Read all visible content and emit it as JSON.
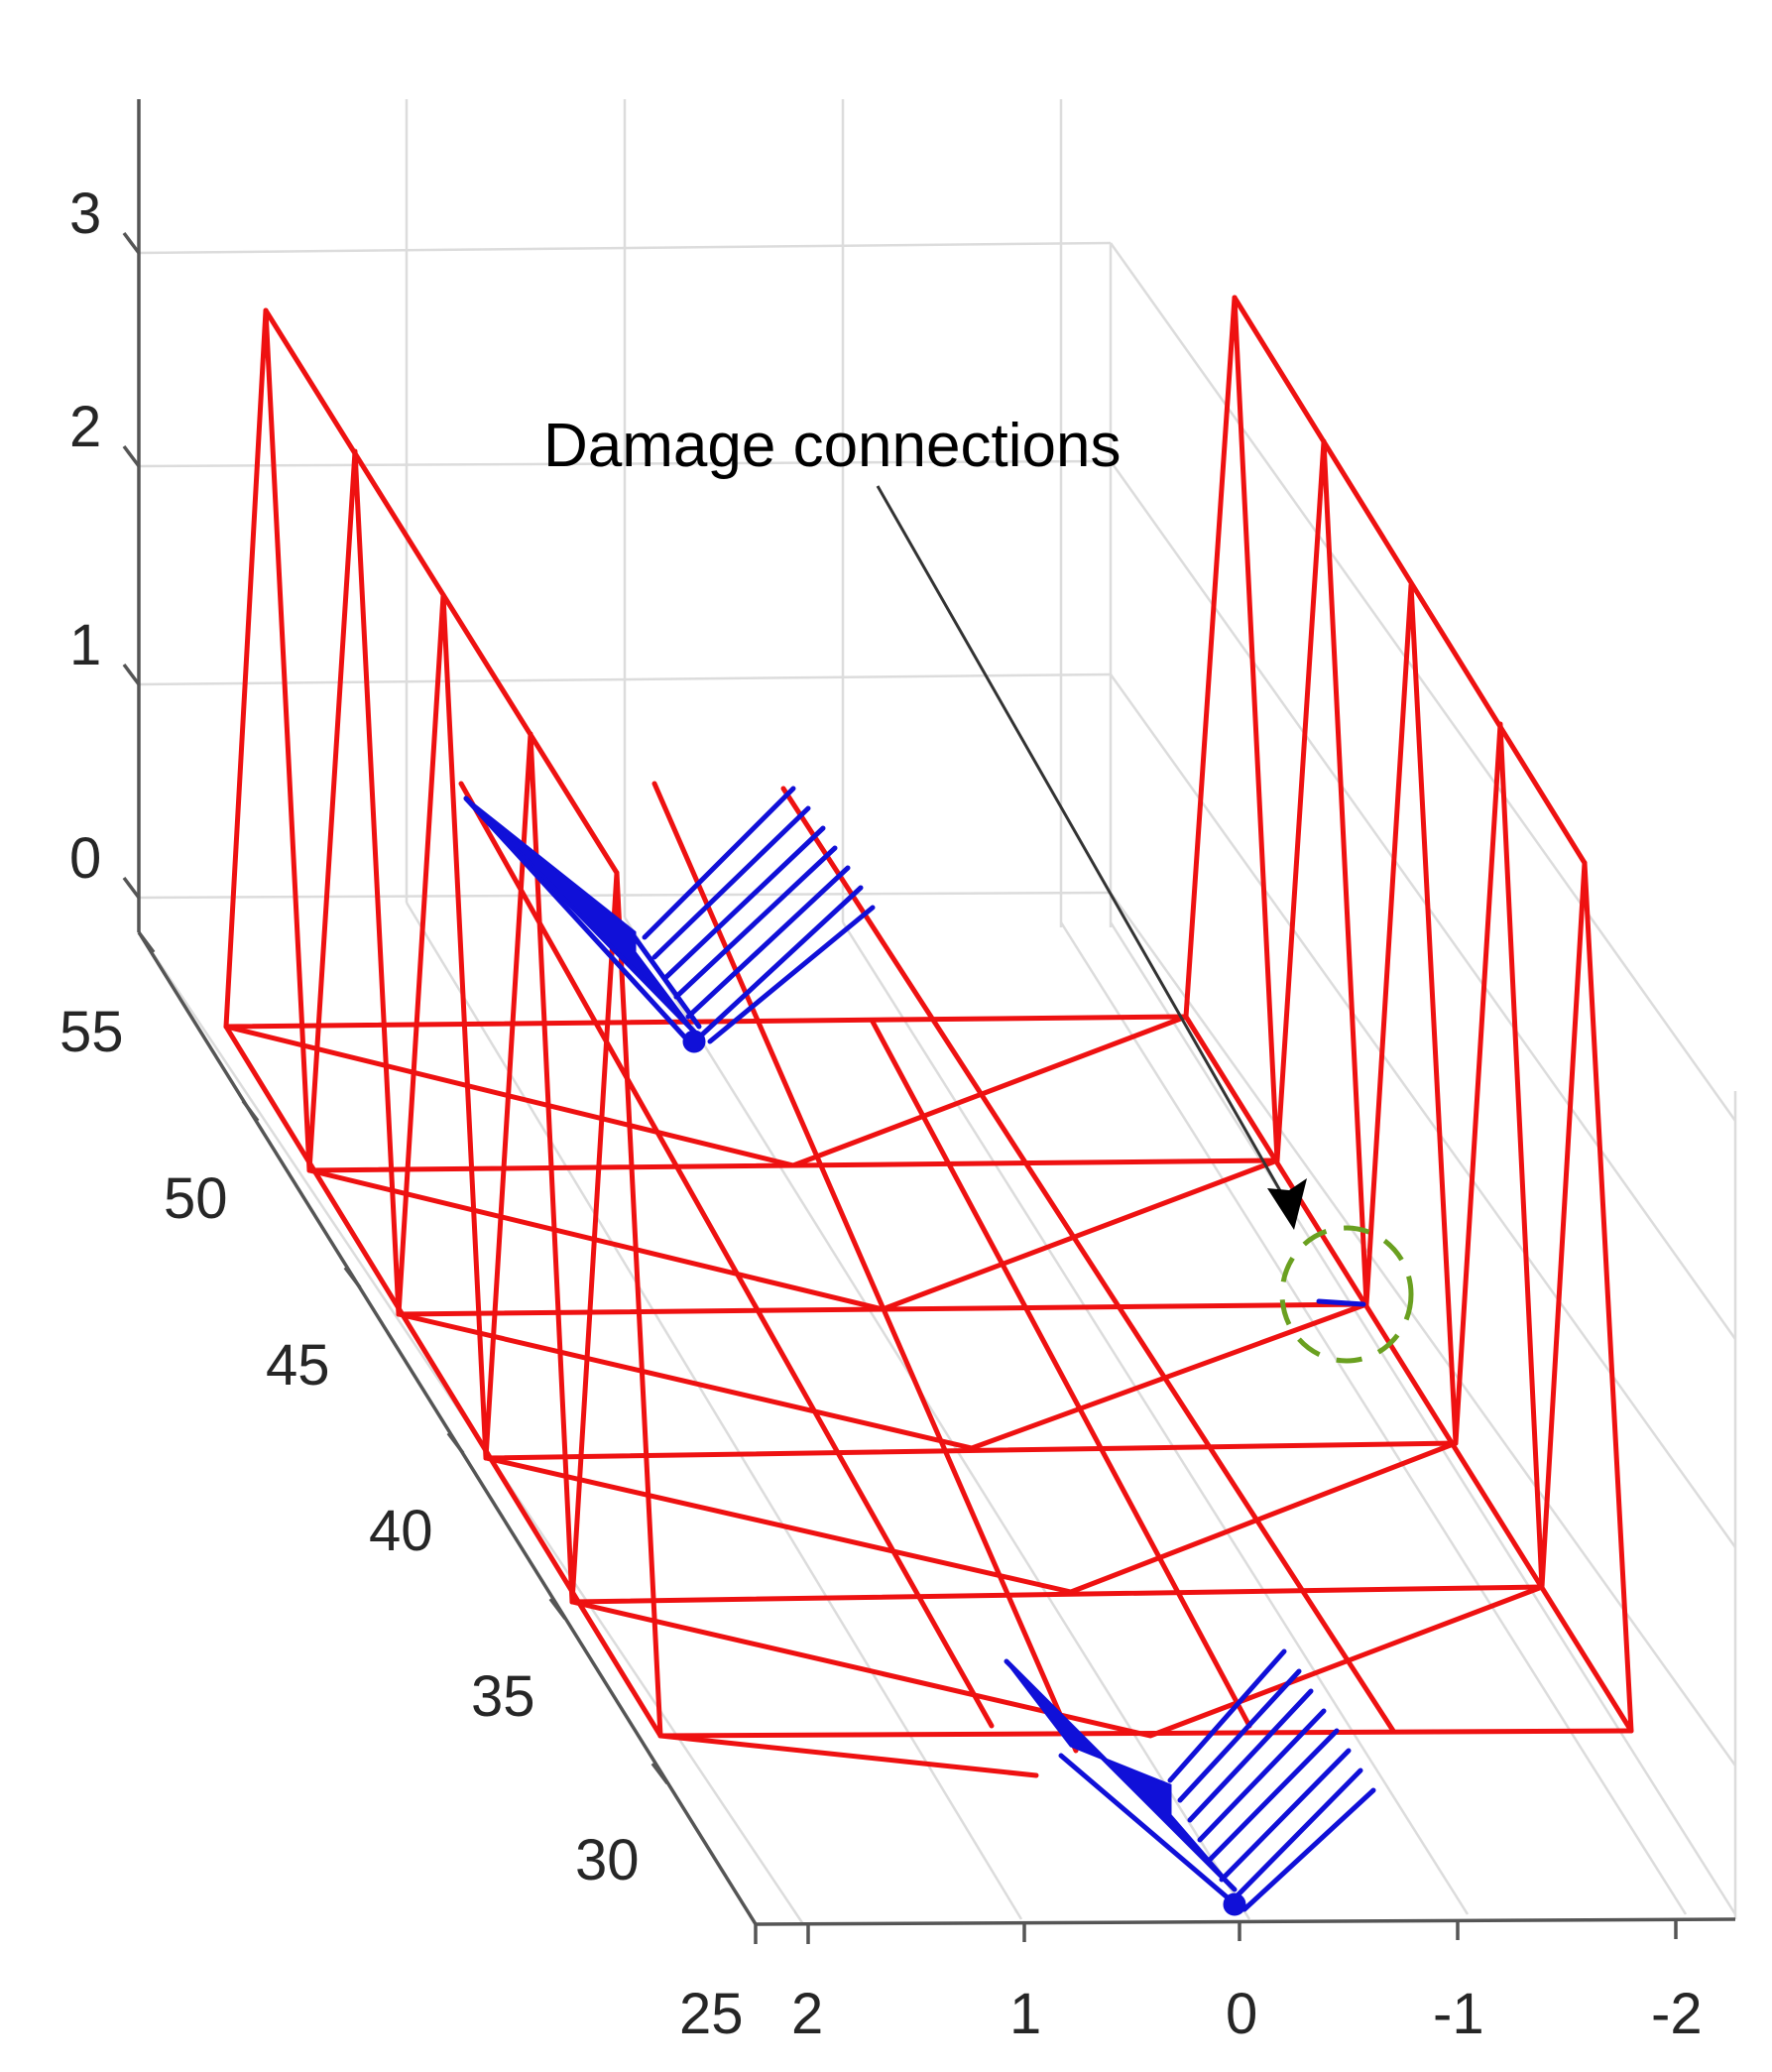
{
  "figure": {
    "annotation": "Damage connections",
    "colors": {
      "structure": "#ee1111",
      "supports": "#1010d8",
      "damage_marker": "#6aa020",
      "grid": "#dcdcdc",
      "axis": "#555555"
    },
    "axes": {
      "x_ticks": [
        "2",
        "1",
        "0",
        "-1",
        "-2"
      ],
      "y_ticks": [
        "25",
        "30",
        "35",
        "40",
        "45",
        "50",
        "55"
      ],
      "z_ticks": [
        "0",
        "1",
        "2",
        "3"
      ]
    }
  }
}
